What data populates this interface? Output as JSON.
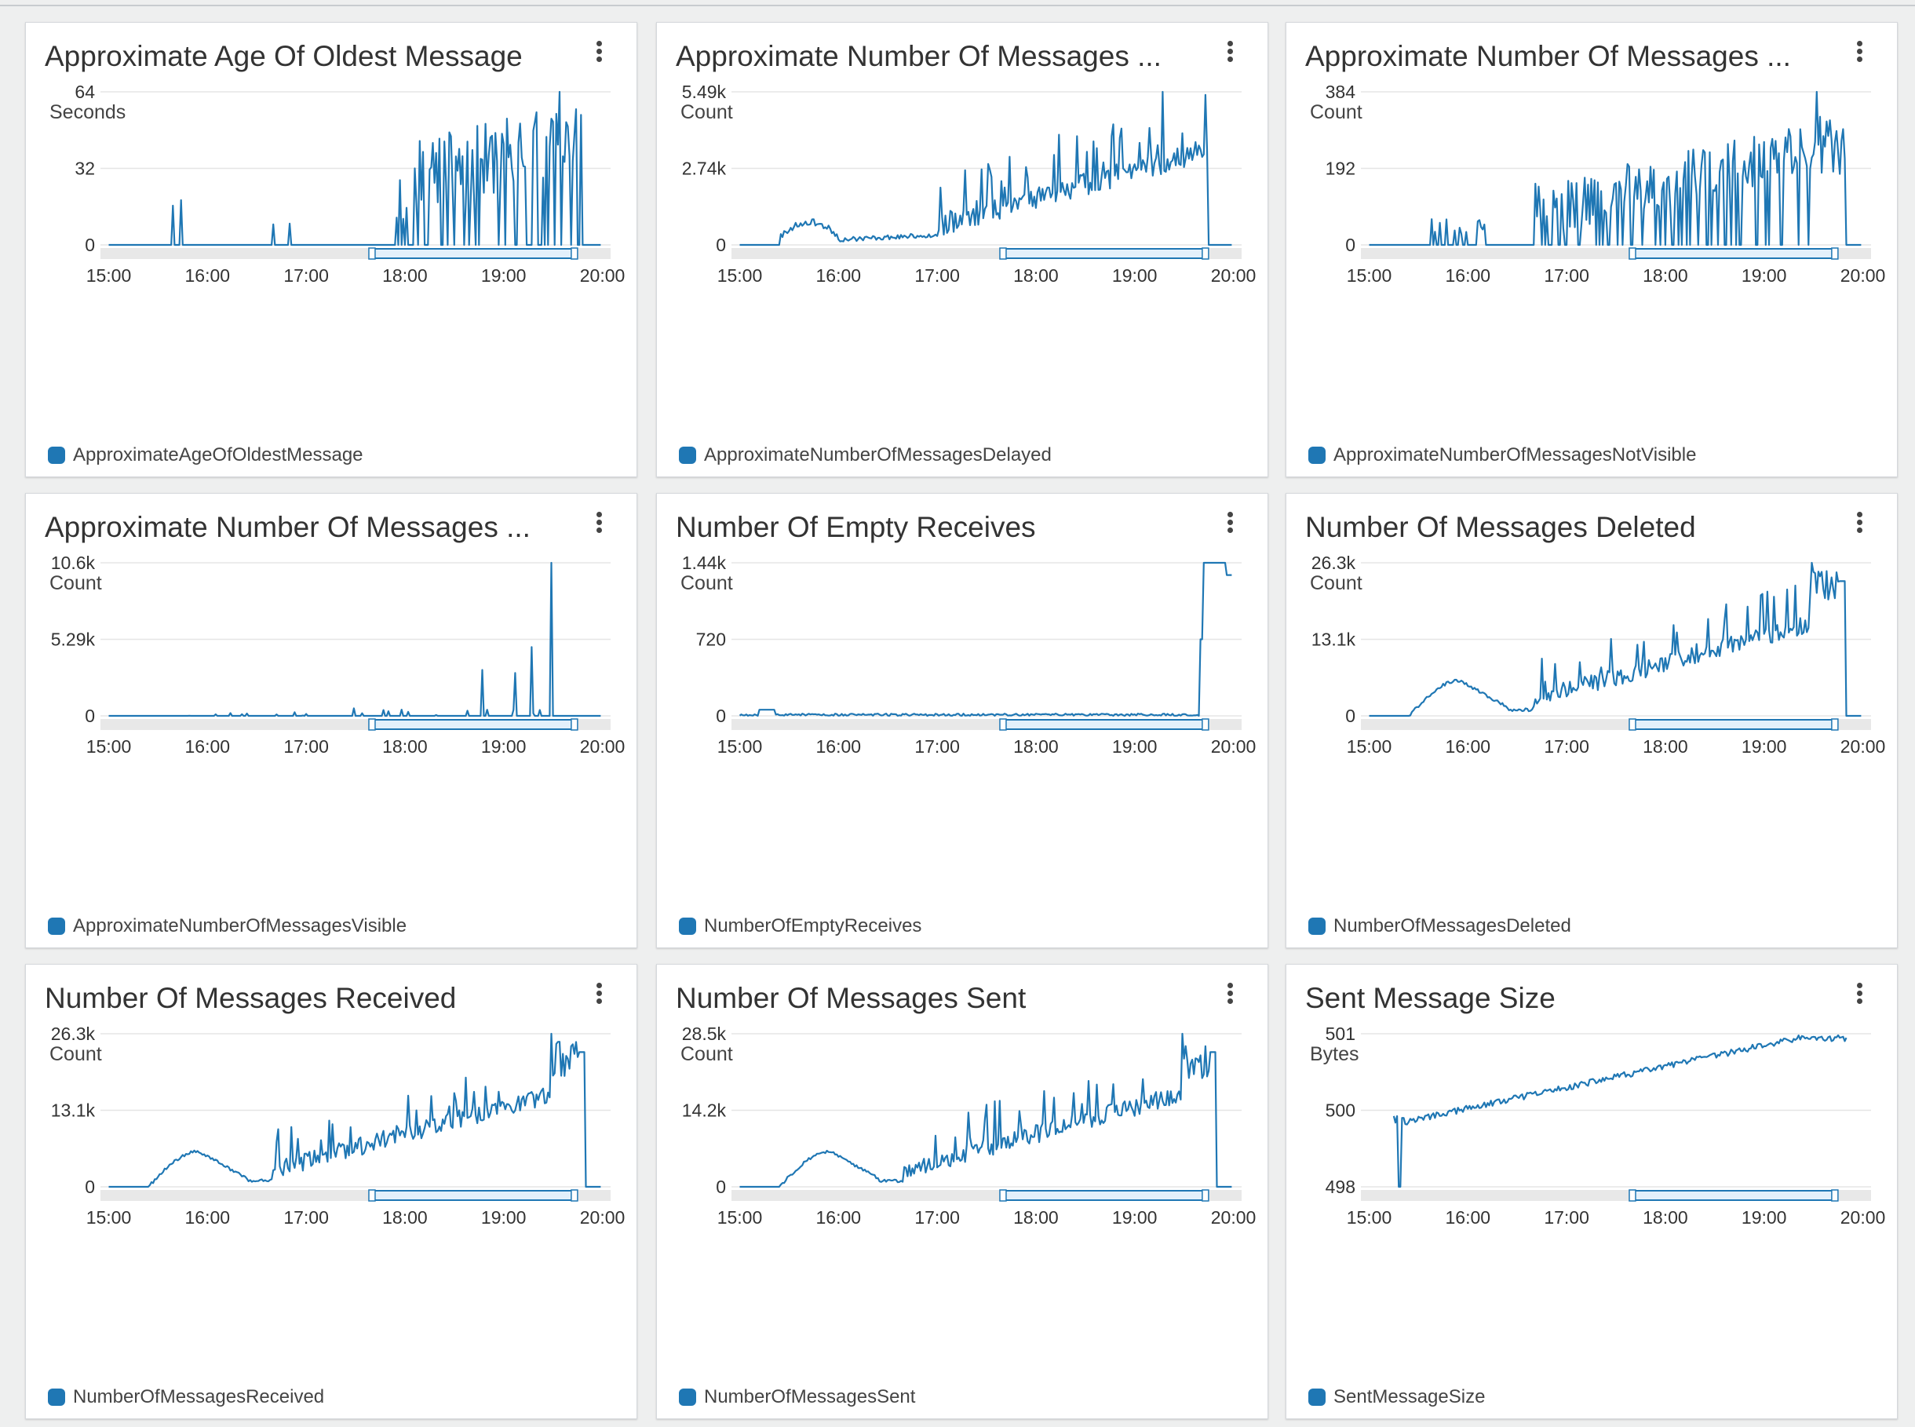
{
  "colors": {
    "series": "#1f77b4",
    "grid": "#e5e5e5",
    "slider_bg": "#e8e8e8",
    "slider_fill": "#e3f0fb",
    "text": "#333333"
  },
  "common": {
    "x_ticks": [
      "15:00",
      "16:00",
      "17:00",
      "18:00",
      "19:00",
      "20:00"
    ],
    "menu_icon": "vertical-ellipsis-icon"
  },
  "chart_data": [
    {
      "type": "line",
      "title": "Approximate Age Of Oldest Message",
      "ylabel": "Seconds",
      "yticks": [
        "64",
        "32",
        "0"
      ],
      "ylim": [
        0,
        64
      ],
      "xlim": [
        "14:55",
        "20:05"
      ],
      "series": [
        {
          "name": "ApproximateAgeOfOldestMessage",
          "shape": "age_oldest",
          "values": []
        }
      ]
    },
    {
      "type": "line",
      "title": "Approximate Number Of Messages ...",
      "ylabel": "Count",
      "yticks": [
        "5.49k",
        "2.74k",
        "0"
      ],
      "ylim": [
        0,
        5490
      ],
      "xlim": [
        "14:55",
        "20:05"
      ],
      "series": [
        {
          "name": "ApproximateNumberOfMessagesDelayed",
          "shape": "delayed",
          "values": []
        }
      ]
    },
    {
      "type": "line",
      "title": "Approximate Number Of Messages ...",
      "ylabel": "Count",
      "yticks": [
        "384",
        "192",
        "0"
      ],
      "ylim": [
        0,
        384
      ],
      "xlim": [
        "14:55",
        "20:05"
      ],
      "series": [
        {
          "name": "ApproximateNumberOfMessagesNotVisible",
          "shape": "notvisible",
          "values": []
        }
      ]
    },
    {
      "type": "line",
      "title": "Approximate Number Of Messages ...",
      "ylabel": "Count",
      "yticks": [
        "10.6k",
        "5.29k",
        "0"
      ],
      "ylim": [
        0,
        10600
      ],
      "xlim": [
        "14:55",
        "20:05"
      ],
      "series": [
        {
          "name": "ApproximateNumberOfMessagesVisible",
          "shape": "visible",
          "values": []
        }
      ]
    },
    {
      "type": "line",
      "title": "Number Of Empty Receives",
      "ylabel": "Count",
      "yticks": [
        "1.44k",
        "720",
        "0"
      ],
      "ylim": [
        0,
        1440
      ],
      "xlim": [
        "14:55",
        "20:05"
      ],
      "series": [
        {
          "name": "NumberOfEmptyReceives",
          "shape": "empty",
          "values": []
        }
      ]
    },
    {
      "type": "line",
      "title": "Number Of Messages Deleted",
      "ylabel": "Count",
      "yticks": [
        "26.3k",
        "13.1k",
        "0"
      ],
      "ylim": [
        0,
        26300
      ],
      "xlim": [
        "14:55",
        "20:05"
      ],
      "series": [
        {
          "name": "NumberOfMessagesDeleted",
          "shape": "deleted",
          "values": []
        }
      ]
    },
    {
      "type": "line",
      "title": "Number Of Messages Received",
      "ylabel": "Count",
      "yticks": [
        "26.3k",
        "13.1k",
        "0"
      ],
      "ylim": [
        0,
        26300
      ],
      "xlim": [
        "14:55",
        "20:05"
      ],
      "series": [
        {
          "name": "NumberOfMessagesReceived",
          "shape": "received",
          "values": []
        }
      ]
    },
    {
      "type": "line",
      "title": "Number Of Messages Sent",
      "ylabel": "Count",
      "yticks": [
        "28.5k",
        "14.2k",
        "0"
      ],
      "ylim": [
        0,
        28500
      ],
      "xlim": [
        "14:55",
        "20:05"
      ],
      "series": [
        {
          "name": "NumberOfMessagesSent",
          "shape": "sent",
          "values": []
        }
      ]
    },
    {
      "type": "line",
      "title": "Sent Message Size",
      "ylabel": "Bytes",
      "yticks": [
        "501",
        "500",
        "498"
      ],
      "ylim": [
        498,
        501
      ],
      "xlim": [
        "14:55",
        "20:05"
      ],
      "series": [
        {
          "name": "SentMessageSize",
          "shape": "size",
          "values": []
        }
      ]
    }
  ]
}
